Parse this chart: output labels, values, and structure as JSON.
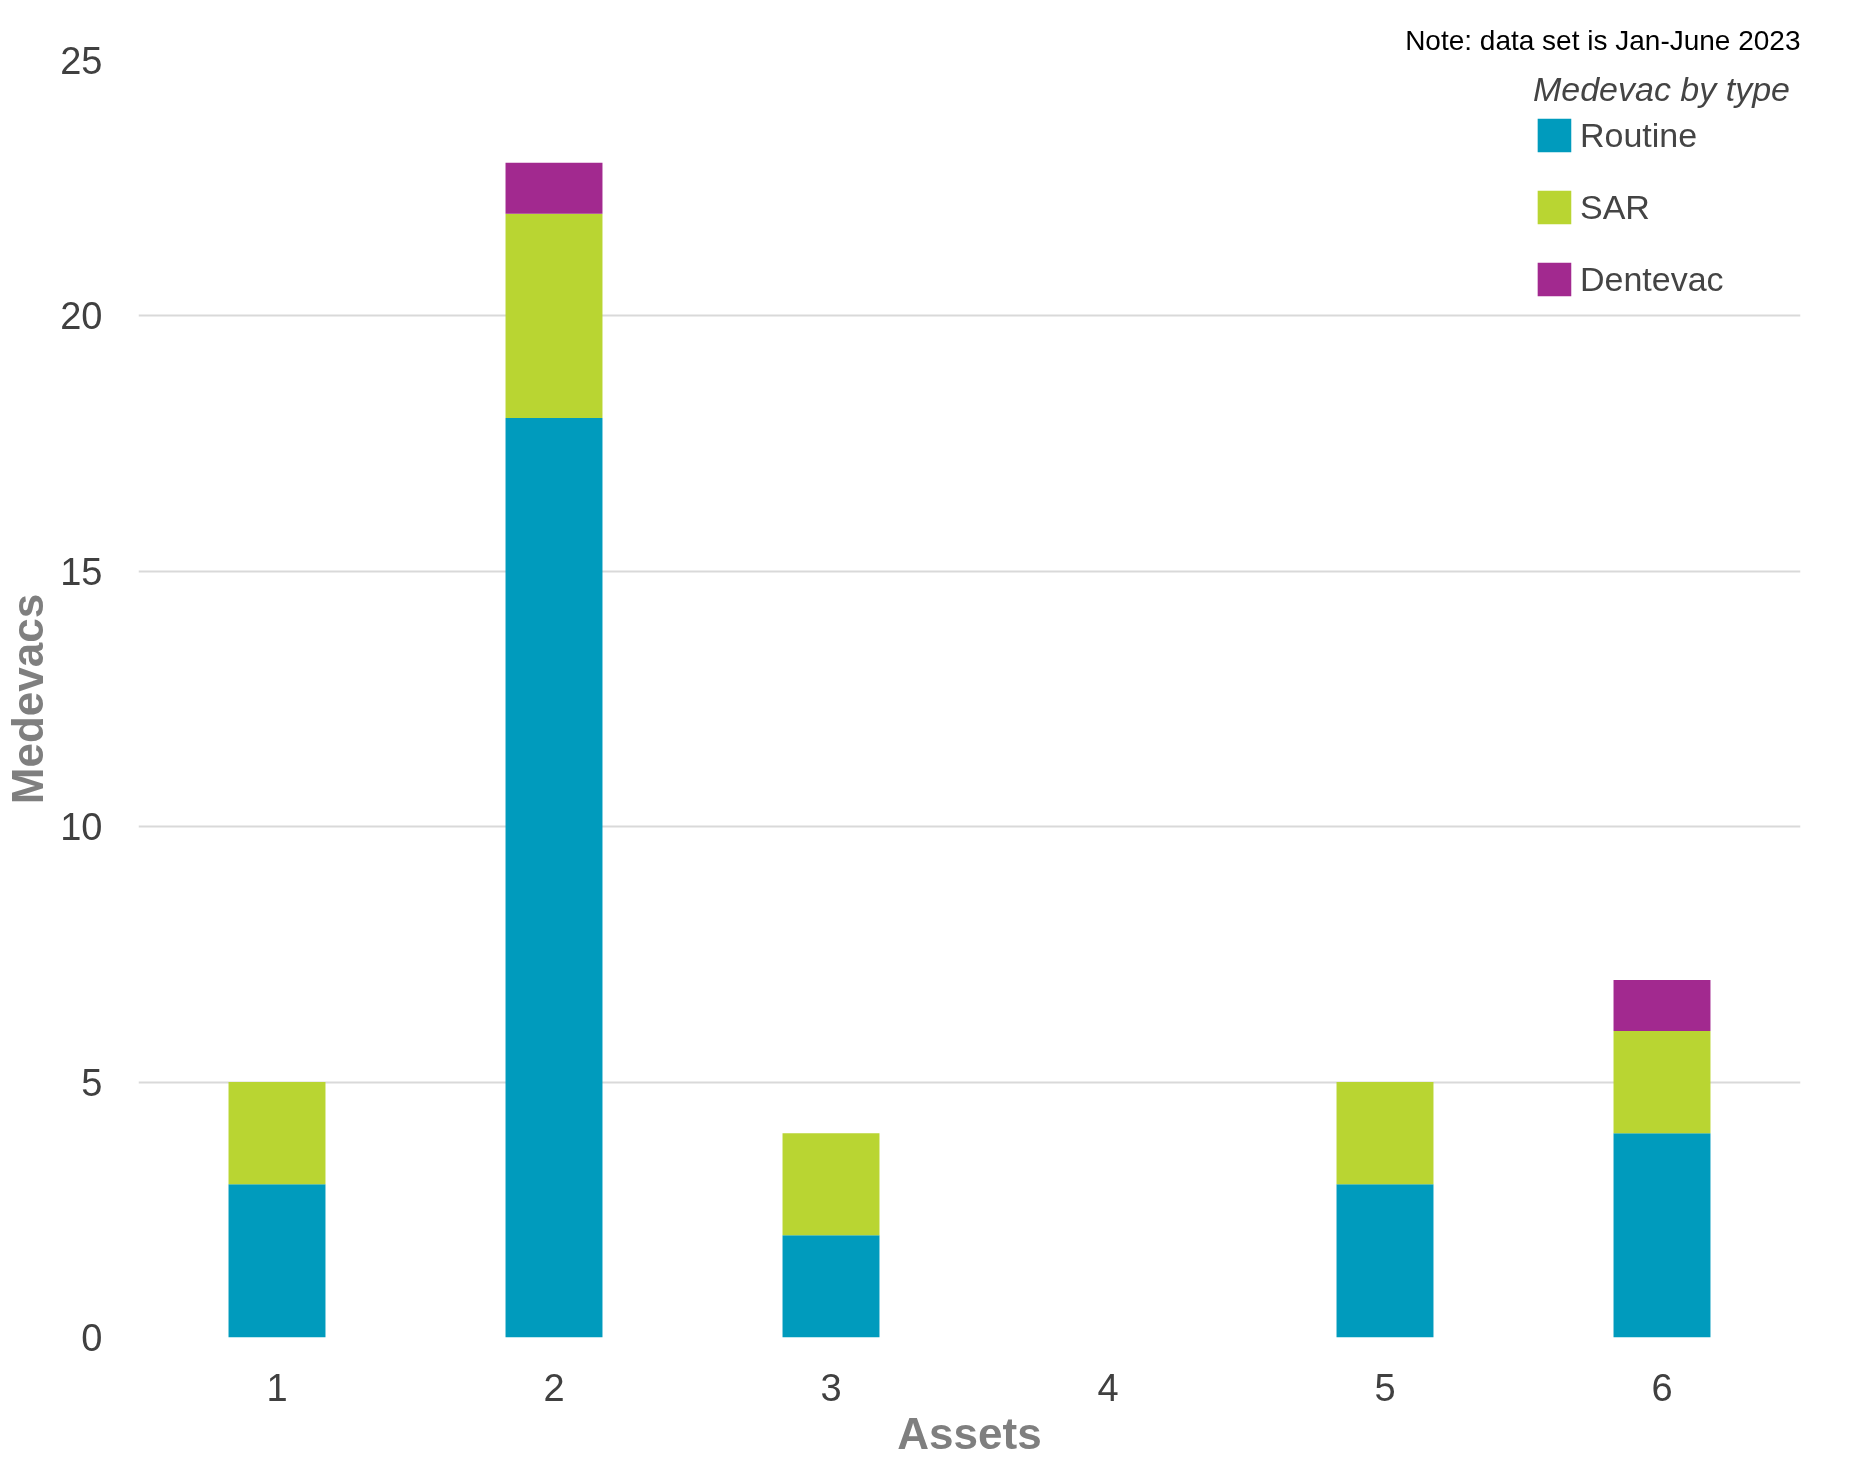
{
  "chart_data": {
    "type": "bar",
    "stacked": true,
    "xlabel": "Assets",
    "ylabel": "Medevacs",
    "legend_title": "Medevac by type",
    "categories": [
      "1",
      "2",
      "3",
      "4",
      "5",
      "6"
    ],
    "series": [
      {
        "name": "Routine",
        "color": "#009bbd",
        "values": [
          3,
          18,
          2,
          0,
          3,
          4
        ]
      },
      {
        "name": "SAR",
        "color": "#b9d532",
        "values": [
          2,
          4,
          2,
          0,
          2,
          2
        ]
      },
      {
        "name": "Dentevac",
        "color": "#a2298f",
        "values": [
          0,
          1,
          0,
          0,
          0,
          1
        ]
      }
    ],
    "ylim": [
      0,
      25
    ],
    "yticks": [
      0,
      5,
      10,
      15,
      20,
      25
    ],
    "grid": "y",
    "legend": "top right",
    "annotations": [
      "Note: data set is Jan-June 2023"
    ]
  }
}
